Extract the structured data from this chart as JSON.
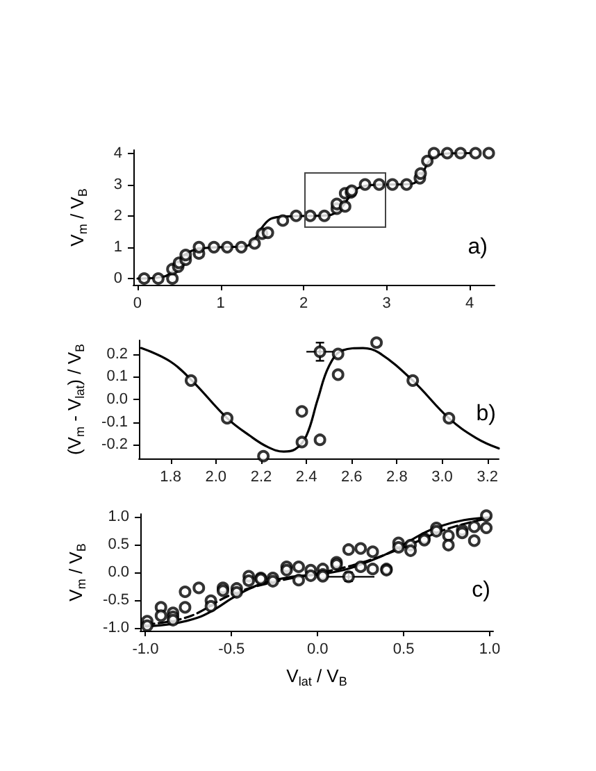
{
  "chart_data": [
    {
      "type": "scatter",
      "ylabel": "V$_{m}$ / V$_{B}$",
      "annotations": [
        "a)"
      ],
      "xlim": [
        -0.05,
        4.3
      ],
      "ylim": [
        -0.2,
        4.1
      ],
      "xticks": [
        0,
        1,
        2,
        3,
        4
      ],
      "yticks": [
        0,
        1,
        2,
        3,
        4
      ],
      "grid": false,
      "marker": "circle",
      "series": [
        {
          "color": "#000000",
          "x": [
            0.08,
            0.25,
            0.42,
            0.42,
            0.49,
            0.5,
            0.58,
            0.58,
            0.74,
            0.74,
            0.92,
            1.08,
            1.25,
            1.41,
            1.5,
            1.57,
            1.75,
            1.91,
            2.08,
            2.25,
            2.4,
            2.4,
            2.5,
            2.5,
            2.57,
            2.58,
            2.74,
            2.91,
            3.07,
            3.24,
            3.4,
            3.41,
            3.49,
            3.57,
            3.73,
            3.89,
            4.07,
            4.23
          ],
          "values": [
            0,
            0,
            0,
            0.3,
            0.38,
            0.5,
            0.6,
            0.75,
            0.8,
            1,
            1,
            1,
            1,
            1.12,
            1.43,
            1.46,
            1.85,
            2,
            2,
            2,
            2.23,
            2.38,
            2.3,
            2.72,
            2.75,
            2.8,
            3,
            3,
            3,
            3,
            3.2,
            3.35,
            3.75,
            4,
            4,
            4,
            4,
            4
          ]
        },
        {
          "type": "line",
          "color": "#000000",
          "line_style": "solid",
          "marker": "none",
          "x": [
            0,
            0.3,
            0.45,
            0.55,
            0.65,
            0.8,
            1,
            1.3,
            1.42,
            1.52,
            1.62,
            1.8,
            2.3,
            2.45,
            2.55,
            2.65,
            2.8,
            3.3,
            3.42,
            3.5,
            3.6,
            3.75,
            4
          ],
          "values": [
            0,
            0.05,
            0.3,
            0.7,
            0.88,
            0.97,
            1,
            1.03,
            1.3,
            1.7,
            1.92,
            1.98,
            2.02,
            2.25,
            2.6,
            2.88,
            2.98,
            3.02,
            3.3,
            3.7,
            3.92,
            3.99,
            4
          ]
        }
      ]
    },
    {
      "type": "scatter",
      "ylabel": "(V$_{m}$ - V$_{lat}$) / V$_{B}$",
      "annotations": [
        "b)"
      ],
      "xlim": [
        1.66,
        3.25
      ],
      "ylim": [
        -0.26,
        0.26
      ],
      "xticks": [
        1.8,
        {
          "value": 2,
          "label": "2.0"
        },
        2.2,
        2.4,
        2.6,
        2.8,
        {
          "value": 3,
          "label": "3.0"
        },
        3.2
      ],
      "yticks": [
        -0.2,
        -0.1,
        {
          "value": 0,
          "label": "0.0"
        },
        0.1,
        0.2
      ],
      "grid": false,
      "marker": "circle",
      "series": [
        {
          "color": "#000000",
          "x": [
            1.89,
            2.05,
            2.21,
            2.38,
            2.38,
            2.46,
            2.54,
            2.54,
            2.71,
            2.87,
            3.03
          ],
          "values": [
            0.083,
            -0.083,
            -0.25,
            -0.188,
            -0.053,
            -0.178,
            0.109,
            0.2,
            0.25,
            0.083,
            -0.083
          ]
        },
        {
          "color": "#000000",
          "x": [
            2.46
          ],
          "values": [
            0.21
          ],
          "errors": [
            0.04
          ],
          "xerrors": [
            0.06
          ]
        },
        {
          "type": "line",
          "color": "#000000",
          "line_style": "solid",
          "marker": "none",
          "x": [
            1.67,
            1.8,
            1.9,
            2.05,
            2.15,
            2.23,
            2.3,
            2.35,
            2.4,
            2.45,
            2.5,
            2.56,
            2.65,
            2.72,
            2.87,
            3.03,
            3.15,
            3.25
          ],
          "values": [
            0.226,
            0.166,
            0.077,
            -0.083,
            -0.16,
            -0.21,
            -0.23,
            -0.22,
            -0.16,
            0,
            0.147,
            0.216,
            0.226,
            0.206,
            0.083,
            -0.083,
            -0.17,
            -0.216
          ]
        }
      ]
    },
    {
      "type": "scatter",
      "xlabel": "V$_{lat}$ / V$_{B}$",
      "ylabel": "V$_{m}$ / V$_{B}$",
      "annotations": [
        "c)"
      ],
      "xlim": [
        -1.03,
        1.02
      ],
      "ylim": [
        -1.05,
        1.05
      ],
      "xticks": [
        {
          "value": -1,
          "label": "-1.0"
        },
        -0.5,
        {
          "value": 0,
          "label": "0.0"
        },
        0.5,
        {
          "value": 1,
          "label": "1.0"
        }
      ],
      "yticks": [
        {
          "value": -1,
          "label": "-1.0"
        },
        -0.5,
        {
          "value": 0,
          "label": "0.0"
        },
        0.5,
        {
          "value": 1,
          "label": "1.0"
        }
      ],
      "grid": false,
      "marker": "circle",
      "series": [
        {
          "color": "#000000",
          "x": [
            -0.99,
            -0.99,
            -0.91,
            -0.91,
            -0.84,
            -0.84,
            -0.84,
            -0.77,
            -0.77,
            -0.69,
            -0.62,
            -0.62,
            -0.55,
            -0.55,
            -0.47,
            -0.47,
            -0.4,
            -0.4,
            -0.33,
            -0.33,
            -0.26,
            -0.26,
            -0.18,
            -0.18,
            -0.11,
            -0.11,
            -0.04,
            -0.04,
            0.03,
            0.03,
            0.03,
            0.11,
            0.11,
            0.18,
            0.25,
            0.25,
            0.32,
            0.32,
            0.4,
            0.4,
            0.47,
            0.47,
            0.54,
            0.54,
            0.62,
            0.62,
            0.69,
            0.69,
            0.76,
            0.76,
            0.84,
            0.84,
            0.91,
            0.91,
            0.98,
            0.98
          ],
          "values": [
            -0.88,
            -0.96,
            -0.63,
            -0.78,
            -0.73,
            -0.8,
            -0.86,
            -0.35,
            -0.63,
            -0.28,
            -0.51,
            -0.61,
            -0.28,
            -0.33,
            -0.29,
            -0.36,
            -0.07,
            -0.15,
            -0.1,
            -0.12,
            -0.1,
            -0.16,
            0.1,
            0.04,
            0.1,
            -0.14,
            0.04,
            -0.06,
            0.06,
            -0.04,
            -0.07,
            0.18,
            0.14,
            0.41,
            0.43,
            0.1,
            0.37,
            0.06,
            0.06,
            0.04,
            0.53,
            0.45,
            0.49,
            0.39,
            0.61,
            0.58,
            0.8,
            0.74,
            0.66,
            0.49,
            0.76,
            0.71,
            0.82,
            0.57,
            1.02,
            0.8
          ]
        },
        {
          "color": "#000000",
          "x": [
            0.18
          ],
          "values": [
            -0.08
          ],
          "errors": [
            0.08
          ],
          "xerrors": [
            0.15
          ]
        },
        {
          "type": "line",
          "color": "#000000",
          "line_style": "solid",
          "marker": "none",
          "x": [
            -1,
            -0.85,
            -0.7,
            -0.6,
            -0.5,
            -0.4,
            -0.3,
            -0.15,
            0,
            0.15,
            0.3,
            0.4,
            0.5,
            0.6,
            0.7,
            0.85,
            1
          ],
          "values": [
            -0.97,
            -0.93,
            -0.82,
            -0.67,
            -0.47,
            -0.3,
            -0.18,
            -0.08,
            -0.04,
            0.04,
            0.2,
            0.33,
            0.5,
            0.68,
            0.82,
            0.94,
            0.99
          ]
        },
        {
          "type": "line",
          "color": "#000000",
          "line_style": "dashed",
          "marker": "none",
          "x": [
            -1,
            -0.75,
            -0.5,
            -0.25,
            0,
            0.25,
            0.5,
            0.75,
            1
          ],
          "values": [
            -0.94,
            -0.8,
            -0.4,
            -0.17,
            -0.02,
            0.17,
            0.45,
            0.78,
            0.98
          ]
        }
      ]
    }
  ]
}
